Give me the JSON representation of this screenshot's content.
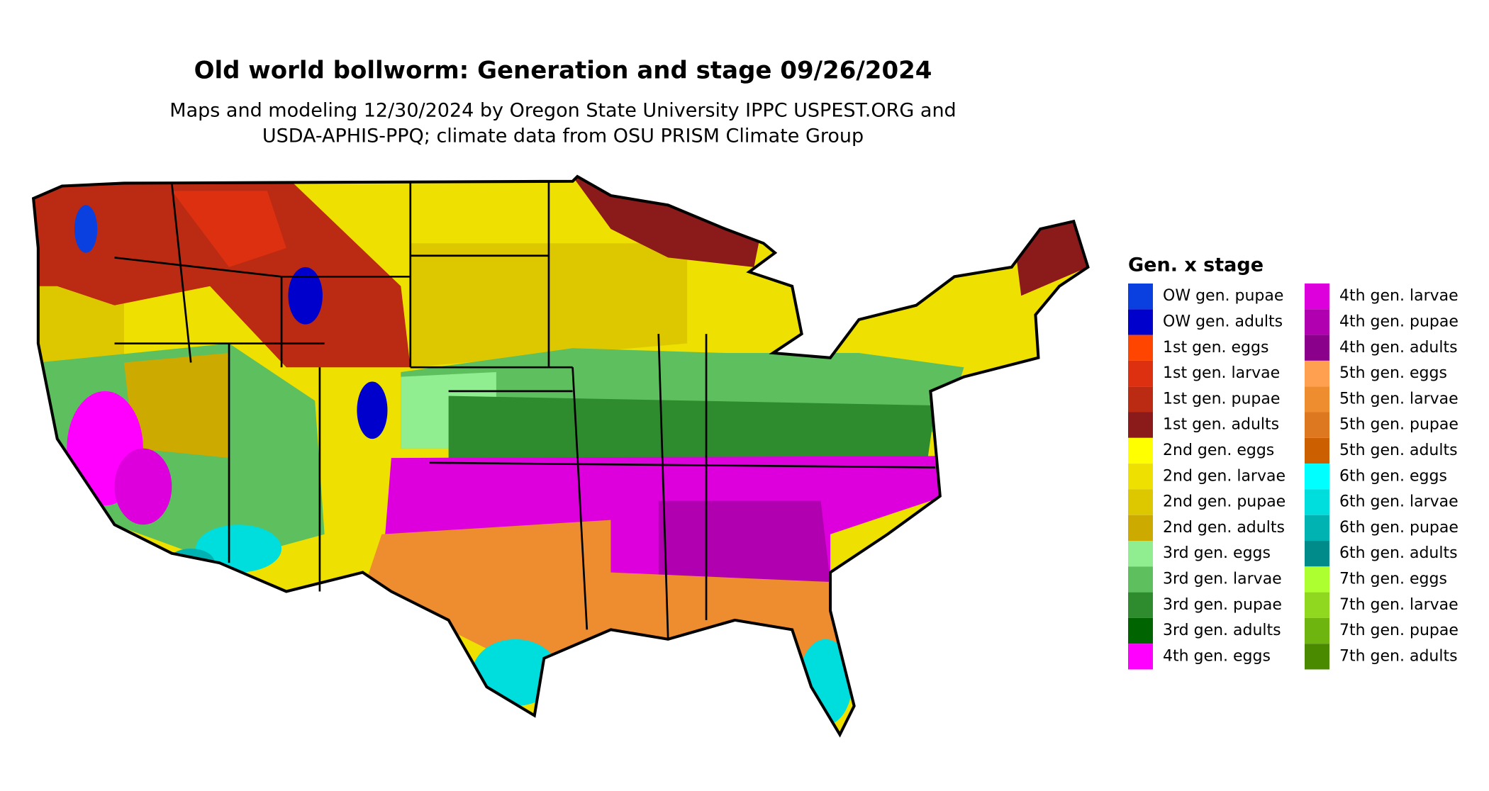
{
  "title": "Old world bollworm: Generation and stage 09/26/2024",
  "subtitle": [
    "Maps and modeling 12/30/2024 by Oregon State University IPPC USPEST.ORG and",
    "USDA-APHIS-PPQ; climate data from OSU PRISM Climate Group"
  ],
  "legend": {
    "title": "Gen. x stage",
    "items": [
      {
        "label": "OW gen. pupae",
        "color": "#0a3fe0"
      },
      {
        "label": "OW gen. adults",
        "color": "#0000cc"
      },
      {
        "label": "1st gen. eggs",
        "color": "#ff4500"
      },
      {
        "label": "1st gen. larvae",
        "color": "#dd3010"
      },
      {
        "label": "1st gen. pupae",
        "color": "#bb2a12"
      },
      {
        "label": "1st gen. adults",
        "color": "#8b1a1a"
      },
      {
        "label": "2nd gen. eggs",
        "color": "#ffff00"
      },
      {
        "label": "2nd gen. larvae",
        "color": "#eee000"
      },
      {
        "label": "2nd gen. pupae",
        "color": "#ddc800"
      },
      {
        "label": "2nd gen. adults",
        "color": "#ccaa00"
      },
      {
        "label": "3rd gen. eggs",
        "color": "#90ee90"
      },
      {
        "label": "3rd gen. larvae",
        "color": "#5dbf5d"
      },
      {
        "label": "3rd gen. pupae",
        "color": "#2e8b2e"
      },
      {
        "label": "3rd gen. adults",
        "color": "#006400"
      },
      {
        "label": "4th gen. eggs",
        "color": "#ff00ff"
      },
      {
        "label": "4th gen. larvae",
        "color": "#dd00dd"
      },
      {
        "label": "4th gen. pupae",
        "color": "#b000b0"
      },
      {
        "label": "4th gen. adults",
        "color": "#8b008b"
      },
      {
        "label": "5th gen. eggs",
        "color": "#ffa050"
      },
      {
        "label": "5th gen. larvae",
        "color": "#ee8c30"
      },
      {
        "label": "5th gen. pupae",
        "color": "#dd7720"
      },
      {
        "label": "5th gen. adults",
        "color": "#cc6000"
      },
      {
        "label": "6th gen. eggs",
        "color": "#00ffff"
      },
      {
        "label": "6th gen. larvae",
        "color": "#00dddd"
      },
      {
        "label": "6th gen. pupae",
        "color": "#00b3b3"
      },
      {
        "label": "6th gen. adults",
        "color": "#008b8b"
      },
      {
        "label": "7th gen. eggs",
        "color": "#adff2f"
      },
      {
        "label": "7th gen. larvae",
        "color": "#8fd81f"
      },
      {
        "label": "7th gen. pupae",
        "color": "#6fb510"
      },
      {
        "label": "7th gen. adults",
        "color": "#4a8a00"
      }
    ]
  }
}
